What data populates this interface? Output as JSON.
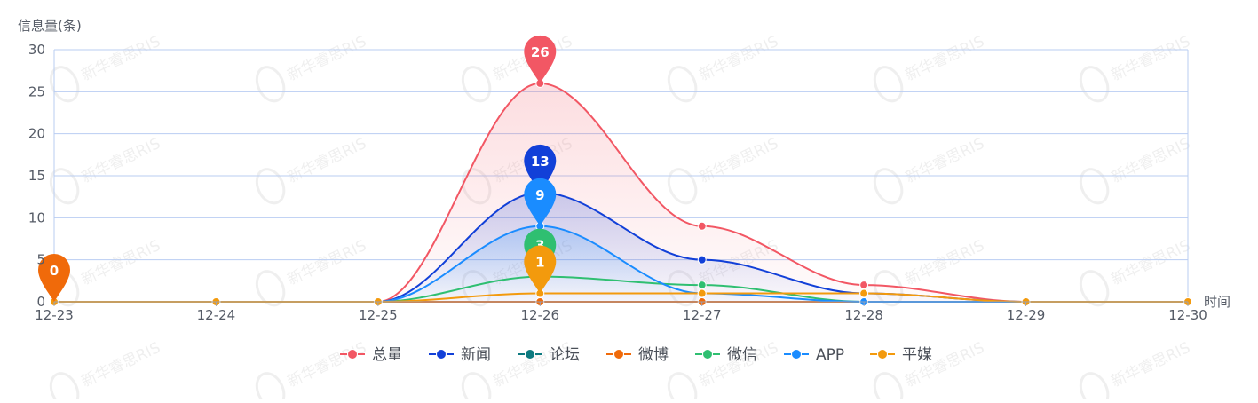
{
  "chart_data": {
    "type": "line",
    "ylabel": "信息量(条)",
    "xlabel": "时间",
    "x": [
      "12-23",
      "12-24",
      "12-25",
      "12-26",
      "12-27",
      "12-28",
      "12-29",
      "12-30"
    ],
    "ylim": [
      0,
      30
    ],
    "yticks": [
      0,
      5,
      10,
      15,
      20,
      25,
      30
    ],
    "grid": true,
    "legend_position": "bottom",
    "series": [
      {
        "name": "总量",
        "color": "#f25764",
        "values": [
          0,
          0,
          0,
          26,
          9,
          2,
          0,
          0
        ],
        "max_label": "26"
      },
      {
        "name": "新闻",
        "color": "#1240d8",
        "values": [
          0,
          0,
          0,
          13,
          5,
          1,
          0,
          0
        ],
        "max_label": "13"
      },
      {
        "name": "论坛",
        "color": "#0d7a80",
        "values": [
          0,
          0,
          0,
          0,
          0,
          0,
          0,
          0
        ],
        "max_label": ""
      },
      {
        "name": "微博",
        "color": "#f06a0a",
        "values": [
          0,
          0,
          0,
          0,
          0,
          0,
          0,
          0
        ],
        "max_label": "0"
      },
      {
        "name": "微信",
        "color": "#2fbf71",
        "values": [
          0,
          0,
          0,
          3,
          2,
          0,
          0,
          0
        ],
        "max_label": "3"
      },
      {
        "name": "APP",
        "color": "#1a8cff",
        "values": [
          0,
          0,
          0,
          9,
          1,
          0,
          0,
          0
        ],
        "max_label": "9"
      },
      {
        "name": "平媒",
        "color": "#f39a0d",
        "values": [
          0,
          0,
          0,
          1,
          1,
          1,
          0,
          0
        ],
        "max_label": "1"
      }
    ]
  },
  "watermark": {
    "text": "新华睿思RIS"
  }
}
